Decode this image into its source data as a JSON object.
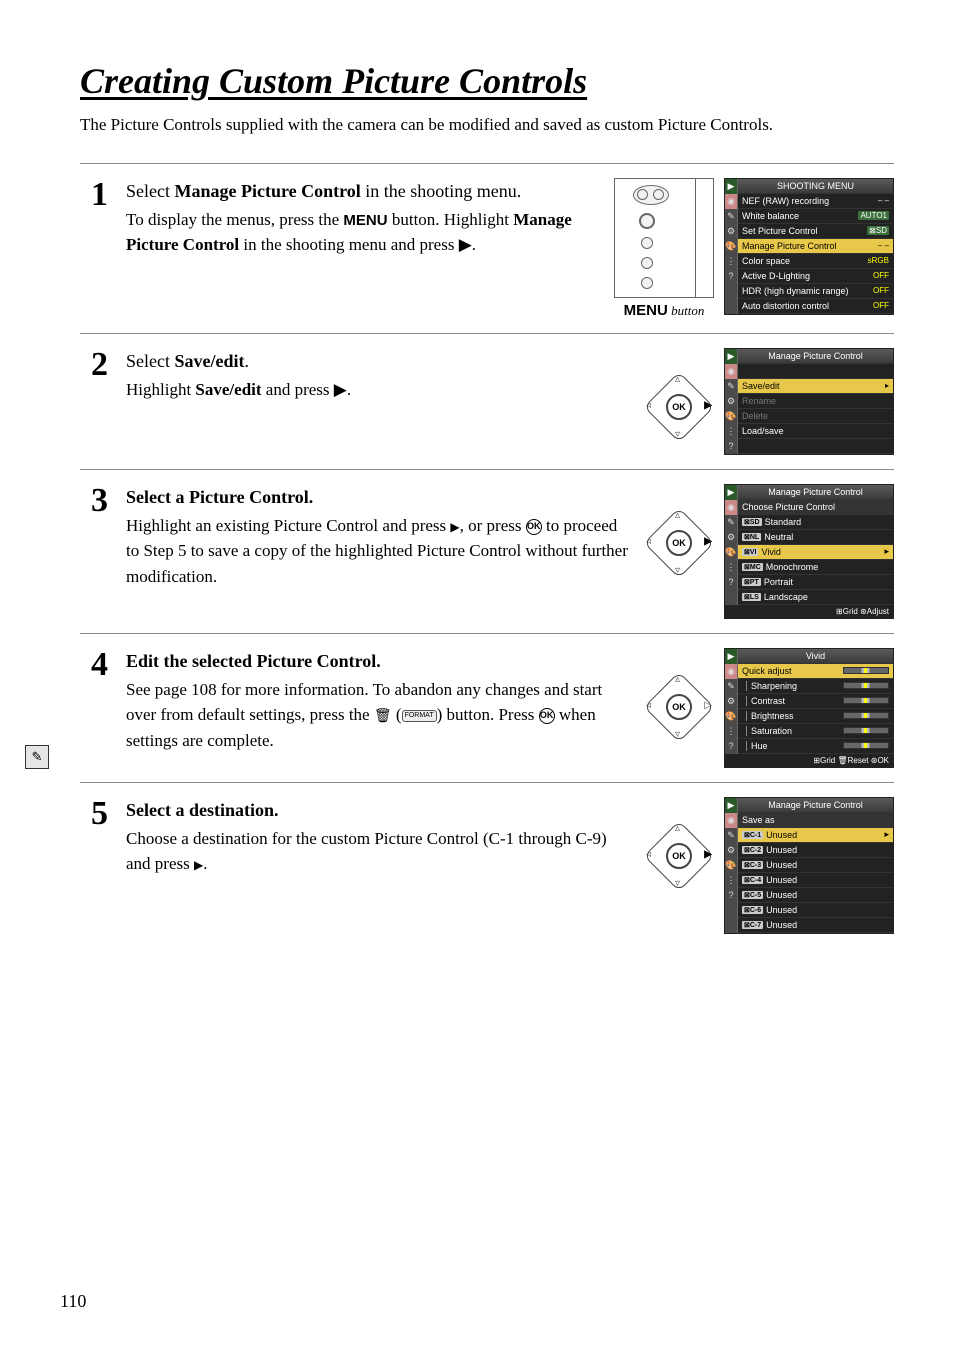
{
  "colors": {
    "text": "#000000",
    "border": "#888888",
    "screen_bg": "#222222",
    "highlight": "#e8c84a",
    "tab_green": "#2a5a2a",
    "value_green": "#3a6e3a",
    "value_yellow": "#ffff00"
  },
  "title": "Creating Custom Picture Controls",
  "intro": "The Picture Controls supplied with the camera can be modified and saved as custom Picture Controls.",
  "page_number": "110",
  "steps": [
    {
      "num": "1",
      "heading_pre": "Select ",
      "heading_bold": "Manage Picture Control",
      "heading_post": " in the shooting menu.",
      "body_pre": "To display the menus, press the ",
      "body_menu": "MENU",
      "body_mid": " button. Highlight ",
      "body_bold": "Manage Picture Control",
      "body_post": " in the shooting menu and press ▶.",
      "caption_menu": "MENU",
      "caption_post": " button",
      "screen": {
        "title": "SHOOTING MENU",
        "rows": [
          {
            "label": "NEF (RAW) recording",
            "val": "– –",
            "valclass": ""
          },
          {
            "label": "White balance",
            "val": "AUTO1",
            "valclass": "grn"
          },
          {
            "label": "Set Picture Control",
            "val": "⊠SD",
            "valclass": "grn"
          },
          {
            "label": "Manage Picture Control",
            "val": "– –",
            "valclass": "",
            "sel": true
          },
          {
            "label": "Color space",
            "val": "sRGB",
            "valclass": "yel"
          },
          {
            "label": "Active D-Lighting",
            "val": "OFF",
            "valclass": "yel"
          },
          {
            "label": "HDR (high dynamic range)",
            "val": "OFF",
            "valclass": "yel"
          },
          {
            "label": "Auto distortion control",
            "val": "OFF",
            "valclass": "yel"
          }
        ]
      }
    },
    {
      "num": "2",
      "heading_pre": "Select ",
      "heading_bold": "Save/edit",
      "heading_post": ".",
      "body_pre": "Highlight ",
      "body_bold": "Save/edit",
      "body_post": " and press ▶.",
      "screen": {
        "title": "Manage Picture Control",
        "rows": [
          {
            "label": "",
            "val": ""
          },
          {
            "label": "Save/edit",
            "val": "▸",
            "sel": true
          },
          {
            "label": "Rename",
            "val": "",
            "disabled": true
          },
          {
            "label": "Delete",
            "val": "",
            "disabled": true
          },
          {
            "label": "Load/save",
            "val": ""
          },
          {
            "label": "",
            "val": ""
          }
        ]
      }
    },
    {
      "num": "3",
      "heading": "Select a Picture Control.",
      "body": "Highlight an existing Picture Control and press ▶, or press ⊛ to proceed to Step 5 to save a copy of the highlighted Picture Control without further modification.",
      "screen": {
        "title": "Manage Picture Control",
        "subtitle": "Choose Picture Control",
        "rows": [
          {
            "badge": "⊠SD",
            "label": "Standard"
          },
          {
            "badge": "⊠NL",
            "label": "Neutral"
          },
          {
            "badge": "⊠VI",
            "label": "Vivid",
            "sel": true,
            "arr": true
          },
          {
            "badge": "⊠MC",
            "label": "Monochrome"
          },
          {
            "badge": "⊠PT",
            "label": "Portrait"
          },
          {
            "badge": "⊠LS",
            "label": "Landscape"
          }
        ],
        "footer": "⊞Grid  ⊛Adjust"
      }
    },
    {
      "num": "4",
      "heading": "Edit the selected Picture Control.",
      "body_pre": "See page 108 for more information.  To abandon any changes and start over from default settings, press the ",
      "body_glyph1": "🗑",
      "body_glyph2": "FORMAT",
      "body_mid": " button. Press ",
      "body_post": " when settings are complete.",
      "screen": {
        "title": "Vivid",
        "rows": [
          {
            "label": "Quick adjust",
            "slider": true,
            "sel": true
          },
          {
            "label": "Sharpening",
            "slider": true,
            "indent": true
          },
          {
            "label": "Contrast",
            "slider": true,
            "indent": true
          },
          {
            "label": "Brightness",
            "slider": true,
            "indent": true
          },
          {
            "label": "Saturation",
            "slider": true,
            "indent": true
          },
          {
            "label": "Hue",
            "slider": true,
            "indent": true
          }
        ],
        "footer": "⊞Grid  🗑Reset  ⊛OK"
      }
    },
    {
      "num": "5",
      "heading": "Select a destination.",
      "body": "Choose a destination for the custom Picture Control (C-1 through C-9) and press ▶.",
      "screen": {
        "title": "Manage Picture Control",
        "subtitle": "Save as",
        "rows": [
          {
            "badge": "⊠C-1",
            "label": "Unused",
            "sel": true,
            "arr": true
          },
          {
            "badge": "⊠C-2",
            "label": "Unused"
          },
          {
            "badge": "⊠C-3",
            "label": "Unused"
          },
          {
            "badge": "⊠C-4",
            "label": "Unused"
          },
          {
            "badge": "⊠C-5",
            "label": "Unused"
          },
          {
            "badge": "⊠C-6",
            "label": "Unused"
          },
          {
            "badge": "⊠C-7",
            "label": "Unused"
          }
        ]
      }
    }
  ]
}
